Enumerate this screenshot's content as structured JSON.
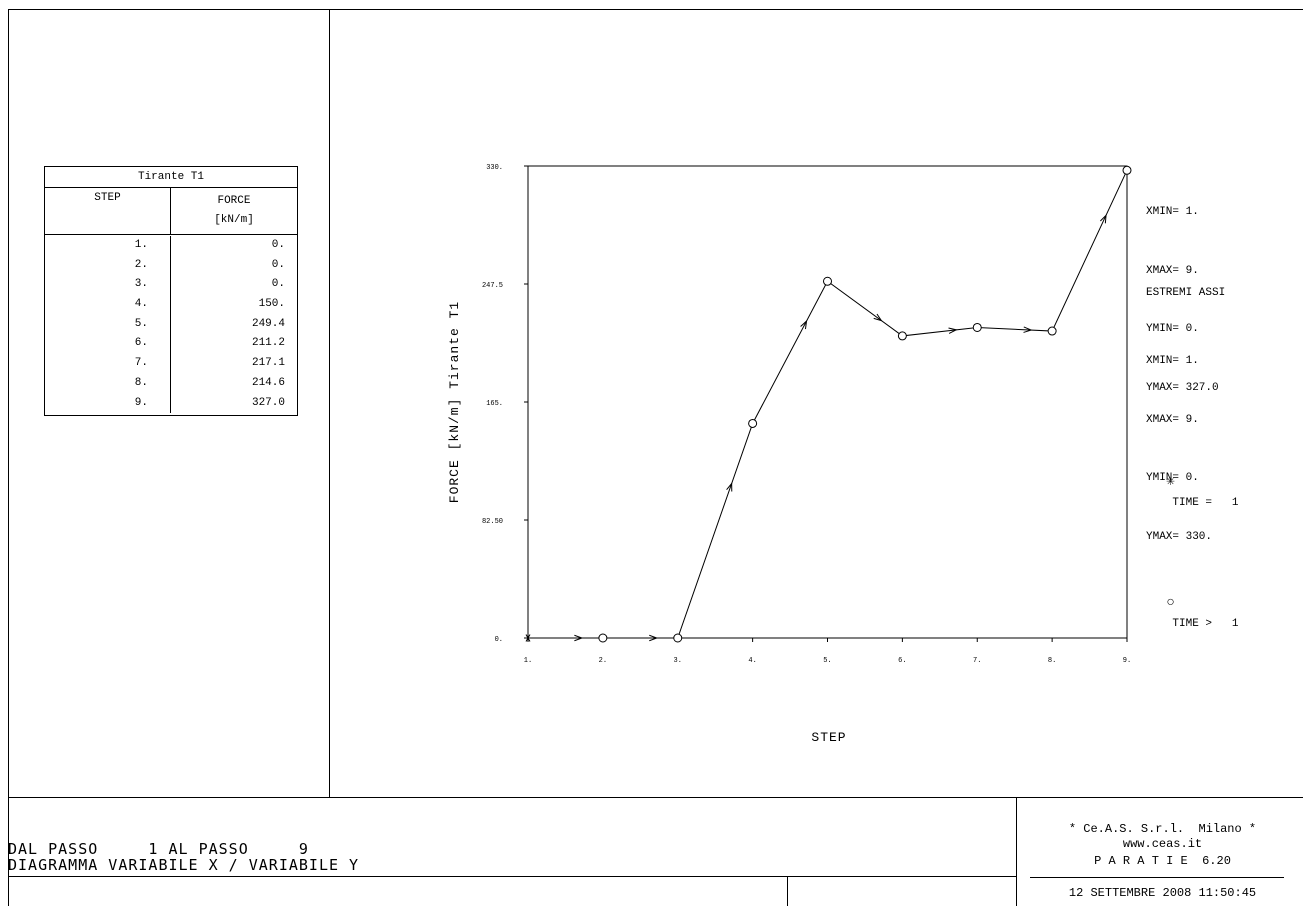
{
  "table": {
    "title": "Tirante  T1",
    "col_step": "STEP",
    "col_force": "FORCE",
    "col_unit": "[kN/m]",
    "rows": [
      {
        "step": "1.",
        "force": "0."
      },
      {
        "step": "2.",
        "force": "0."
      },
      {
        "step": "3.",
        "force": "0."
      },
      {
        "step": "4.",
        "force": "150."
      },
      {
        "step": "5.",
        "force": "249.4"
      },
      {
        "step": "6.",
        "force": "211.2"
      },
      {
        "step": "7.",
        "force": "217.1"
      },
      {
        "step": "8.",
        "force": "214.6"
      },
      {
        "step": "9.",
        "force": "327.0"
      }
    ]
  },
  "chart_data": {
    "type": "line",
    "xlabel": "STEP",
    "ylabel": "FORCE  [kN/m]  Tirante  T1",
    "xlim": [
      1,
      9
    ],
    "ylim": [
      0,
      330
    ],
    "x_ticks": [
      "1.",
      "2.",
      "3.",
      "4.",
      "5.",
      "6.",
      "7.",
      "8.",
      "9."
    ],
    "y_ticks": [
      "0.",
      "82.50",
      "165.",
      "247.5",
      "330."
    ],
    "y_tick_values": [
      0,
      82.5,
      165,
      247.5,
      330
    ],
    "x": [
      1,
      2,
      3,
      4,
      5,
      6,
      7,
      8,
      9
    ],
    "y": [
      0,
      0,
      0,
      150,
      249.4,
      211.2,
      217.1,
      214.6,
      327.0
    ],
    "markers": [
      "star",
      "circle",
      "circle",
      "circle",
      "circle",
      "circle",
      "circle",
      "circle",
      "circle"
    ],
    "grid": false,
    "legend": [
      {
        "symbol": "✳",
        "label": "TIME =   1"
      },
      {
        "symbol": "○",
        "label": "TIME >   1"
      }
    ]
  },
  "info": {
    "data_extents": [
      "XMIN= 1.",
      "XMAX= 9.",
      "YMIN= 0.",
      "YMAX= 327.0"
    ],
    "axes_title": "ESTREMI ASSI",
    "axes_extents": [
      "XMIN= 1.",
      "XMAX= 9.",
      "YMIN= 0.",
      "YMAX= 330."
    ]
  },
  "footer": {
    "line1": "DAL PASSO     1 AL PASSO     9",
    "line2": "DIAGRAMMA VARIABILE X / VARIABILE Y",
    "company": "* Ce.A.S. S.r.l.  Milano *",
    "website": "www.ceas.it",
    "product": "P A R A T I E  6.20",
    "date": "12 SETTEMBRE 2008 11:50:45"
  }
}
